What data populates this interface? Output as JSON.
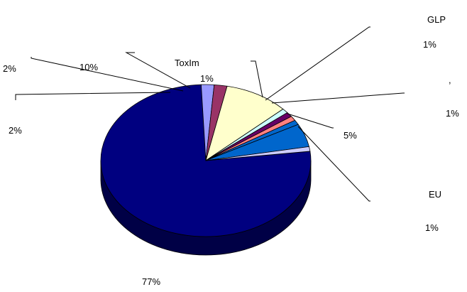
{
  "chart_data": {
    "type": "pie",
    "style": "3d",
    "legend": "none",
    "slices": [
      {
        "label": "",
        "value": 77,
        "value_label": "77%",
        "color": "#000080"
      },
      {
        "label": "",
        "value": 2,
        "value_label": "2%",
        "color": "#9999ff"
      },
      {
        "label": "",
        "value": 2,
        "value_label": "2%",
        "color": "#993366"
      },
      {
        "label": "",
        "value": 10,
        "value_label": "10%",
        "color": "#ffffcc"
      },
      {
        "label": "ToxIm",
        "value": 1,
        "value_label": "1%",
        "color": "#ccffff"
      },
      {
        "label": "",
        "value": 1,
        "value_label": "1%",
        "color": "#660066"
      },
      {
        "label": "GLP",
        "value": 1,
        "value_label": "1%",
        "color": "#ff8080"
      },
      {
        "label": ",",
        "value": 1,
        "value_label": "1%",
        "color": "#0066cc"
      },
      {
        "label": "",
        "value": 5,
        "value_label": "5%",
        "color": "#0066cc"
      },
      {
        "label": "EU",
        "value": 1,
        "value_label": "1%",
        "color": "#ccccff"
      }
    ]
  }
}
